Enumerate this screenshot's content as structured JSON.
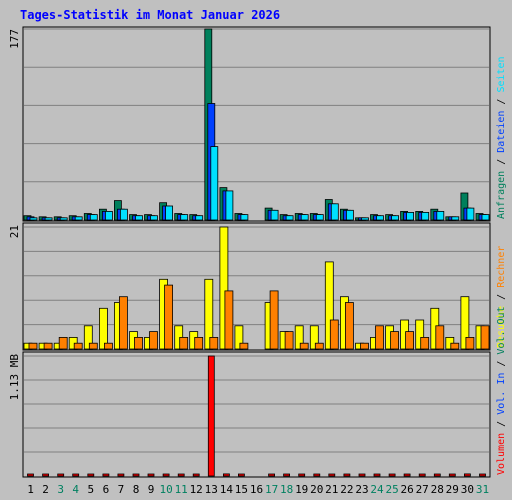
{
  "colors": {
    "page_bg": "#c0c0c0",
    "panel_bg": "#c0c0c0",
    "frame": "#000000",
    "gridline": "#808080",
    "title": "#0000ff",
    "weekday_label": "#000000",
    "weekend_label": "#008060",
    "legend_separator": "#000000",
    "hits": "#00805c",
    "files": "#0040ff",
    "pages": "#00e0ff",
    "visits": "#ffff00",
    "sites": "#ff8000",
    "volume": "#ff0000",
    "vol_in": "#0040ff",
    "vol_out": "#00805c"
  },
  "chart_data": {
    "type": "bar",
    "title": "Tages-Statistik im Monat Januar 2026",
    "categories": [
      "1",
      "2",
      "3",
      "4",
      "5",
      "6",
      "7",
      "8",
      "9",
      "10",
      "11",
      "12",
      "13",
      "14",
      "15",
      "16",
      "17",
      "18",
      "19",
      "20",
      "21",
      "22",
      "23",
      "24",
      "25",
      "26",
      "27",
      "28",
      "29",
      "30",
      "31"
    ],
    "weekend": [
      false,
      false,
      true,
      true,
      false,
      false,
      false,
      false,
      false,
      true,
      true,
      false,
      false,
      false,
      false,
      false,
      true,
      true,
      false,
      false,
      false,
      false,
      false,
      true,
      true,
      false,
      false,
      false,
      false,
      false,
      true
    ],
    "grid": true,
    "panels": [
      {
        "name": "requests",
        "ymax": 177,
        "ymax_label": "177",
        "legend": [
          "Anfragen",
          "Dateien",
          "Seiten"
        ],
        "series": [
          {
            "name": "Anfragen",
            "color_key": "hits",
            "values": [
              4,
              3,
              3,
              4,
              6,
              10,
              18,
              5,
              5,
              16,
              6,
              5,
              177,
              30,
              6,
              0,
              11,
              5,
              6,
              6,
              19,
              10,
              2,
              5,
              5,
              8,
              8,
              10,
              3,
              25,
              6
            ]
          },
          {
            "name": "Dateien",
            "color_key": "files",
            "values": [
              3,
              2,
              2,
              3,
              5,
              8,
              10,
              4,
              4,
              13,
              5,
              4,
              108,
              27,
              5,
              0,
              9,
              4,
              5,
              5,
              15,
              9,
              2,
              4,
              4,
              7,
              7,
              8,
              3,
              11,
              5
            ]
          },
          {
            "name": "Seiten",
            "color_key": "pages",
            "values": [
              2,
              2,
              2,
              3,
              5,
              8,
              10,
              4,
              4,
              13,
              5,
              4,
              68,
              27,
              5,
              0,
              9,
              4,
              5,
              5,
              15,
              9,
              2,
              4,
              4,
              7,
              7,
              8,
              3,
              11,
              5
            ]
          }
        ]
      },
      {
        "name": "visits",
        "ymax": 21,
        "ymax_label": "21",
        "legend": [
          "Besuche",
          "Rechner"
        ],
        "series": [
          {
            "name": "Besuche",
            "color_key": "visits",
            "values": [
              1,
              1,
              1,
              2,
              4,
              7,
              8,
              3,
              2,
              12,
              4,
              3,
              12,
              21,
              4,
              0,
              8,
              3,
              4,
              4,
              15,
              9,
              1,
              2,
              4,
              5,
              5,
              7,
              2,
              9,
              4
            ]
          },
          {
            "name": "Rechner",
            "color_key": "sites",
            "values": [
              1,
              1,
              2,
              1,
              1,
              1,
              9,
              2,
              3,
              11,
              2,
              2,
              2,
              10,
              1,
              0,
              10,
              3,
              1,
              1,
              5,
              8,
              1,
              4,
              3,
              3,
              2,
              4,
              1,
              2,
              4
            ]
          }
        ]
      },
      {
        "name": "volume",
        "ymax": 1.13,
        "ymax_label": "1.13 MB",
        "legend": [
          "Volumen",
          "Vol. In",
          "Vol. Out"
        ],
        "series": [
          {
            "name": "Volumen",
            "color_key": "volume",
            "values": [
              0.01,
              0.01,
              0.01,
              0.01,
              0.01,
              0.01,
              0.01,
              0.01,
              0.01,
              0.01,
              0.01,
              0.01,
              1.13,
              0.02,
              0.01,
              0,
              0.01,
              0.01,
              0.01,
              0.01,
              0.01,
              0.01,
              0.01,
              0.01,
              0.01,
              0.01,
              0.01,
              0.01,
              0.01,
              0.02,
              0.01
            ]
          }
        ]
      }
    ]
  }
}
